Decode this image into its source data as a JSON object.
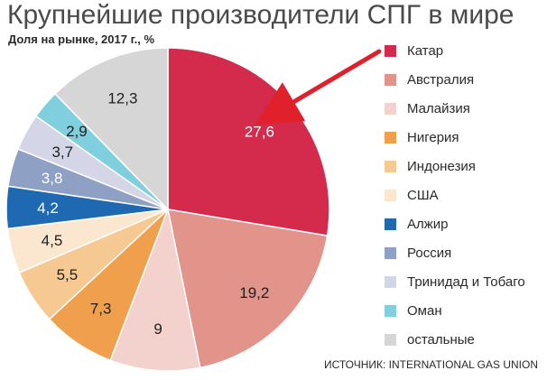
{
  "chart_data": {
    "type": "pie",
    "title": "Крупнейшие производители СПГ в мире",
    "subtitle": "Доля на рынке, 2017 г., %",
    "source": "ИСТОЧНИК: INTERNATIONAL GAS UNION",
    "legend_position": "right",
    "slices": [
      {
        "name": "Катар",
        "value": 27.6,
        "label": "27,6",
        "color": "#d42a4b",
        "label_color": "#ffffff"
      },
      {
        "name": "Австралия",
        "value": 19.2,
        "label": "19,2",
        "color": "#e2948a",
        "label_color": "#1f1f1f"
      },
      {
        "name": "Малайзия",
        "value": 9,
        "label": "9",
        "color": "#f3d1cc",
        "label_color": "#1f1f1f"
      },
      {
        "name": "Нигерия",
        "value": 7.3,
        "label": "7,3",
        "color": "#f0a04d",
        "label_color": "#1f1f1f"
      },
      {
        "name": "Индонезия",
        "value": 5.5,
        "label": "5,5",
        "color": "#f6c992",
        "label_color": "#1f1f1f"
      },
      {
        "name": "США",
        "value": 4.5,
        "label": "4,5",
        "color": "#fbe6cf",
        "label_color": "#1f1f1f"
      },
      {
        "name": "Алжир",
        "value": 4.2,
        "label": "4,2",
        "color": "#1f69b3",
        "label_color": "#ffffff"
      },
      {
        "name": "Россия",
        "value": 3.8,
        "label": "3,8",
        "color": "#8ea0c3",
        "label_color": "#ffffff"
      },
      {
        "name": "Тринидад и Тобаго",
        "value": 3.7,
        "label": "3,7",
        "color": "#d4d6e8",
        "label_color": "#1f1f1f"
      },
      {
        "name": "Оман",
        "value": 2.9,
        "label": "2,9",
        "color": "#7fcfdf",
        "label_color": "#1f1f1f"
      },
      {
        "name": "остальные",
        "value": 12.3,
        "label": "12,3",
        "color": "#d6d6d6",
        "label_color": "#1f1f1f"
      }
    ],
    "annotation": {
      "type": "arrow",
      "points_to": "Катар",
      "color": "#e0202a"
    }
  }
}
